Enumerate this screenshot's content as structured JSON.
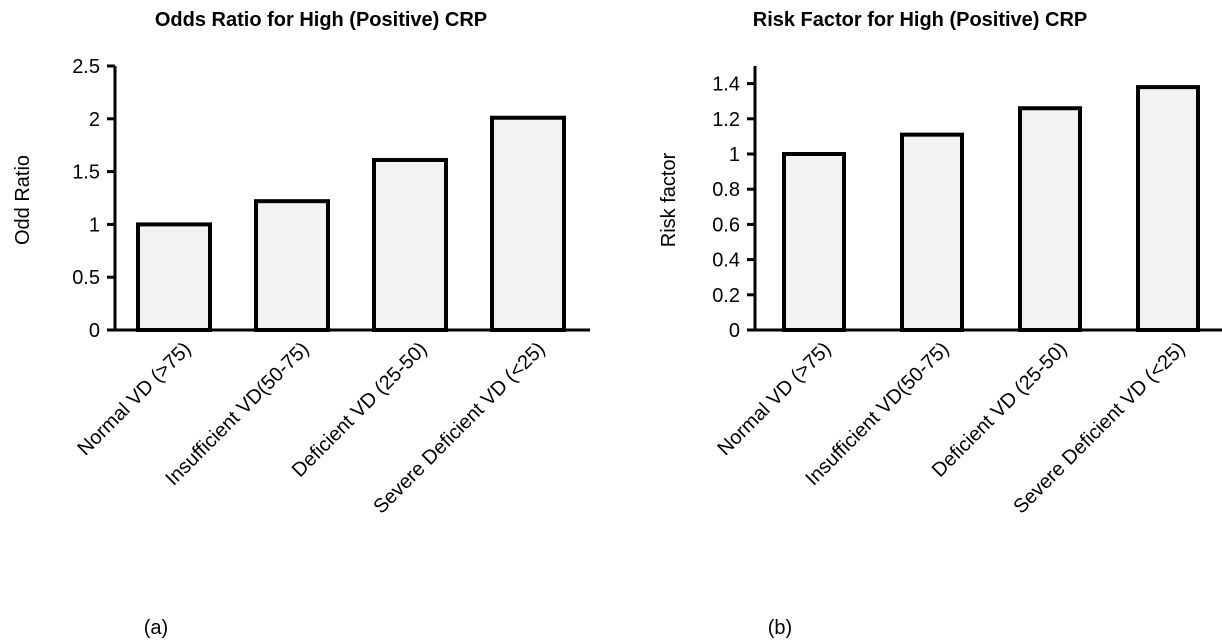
{
  "chart_data": [
    {
      "type": "bar",
      "title": "Odds Ratio for High (Positive) CRP",
      "ylabel": "Odd Ratio",
      "xlabel": "",
      "caption": "(a)",
      "categories": [
        "Normal VD (>75)",
        "Insufficient VD(50-75)",
        "Deficient VD (25-50)",
        "Severe Deficient VD (<25)"
      ],
      "values": [
        1.0,
        1.22,
        1.61,
        2.01
      ],
      "ylim": [
        0,
        2.5
      ],
      "yticks": [
        "0",
        "0.5",
        "1",
        "1.5",
        "2",
        "2.5"
      ],
      "bar_color": "#f2f2f2",
      "grid": false,
      "legend": "none"
    },
    {
      "type": "bar",
      "title": "Risk Factor for High (Positive) CRP",
      "ylabel": "Risk factor",
      "xlabel": "",
      "caption": "(b)",
      "categories": [
        "Normal VD (>75)",
        "Insufficient VD(50-75)",
        "Deficient VD (25-50)",
        "Severe Deficient VD (<25)"
      ],
      "values": [
        1.0,
        1.11,
        1.26,
        1.38
      ],
      "ylim": [
        0,
        1.5
      ],
      "yticks": [
        "0",
        "0.2",
        "0.4",
        "0.6",
        "0.8",
        "1",
        "1.2",
        "1.4"
      ],
      "bar_color": "#f2f2f2",
      "grid": false,
      "legend": "none"
    }
  ]
}
